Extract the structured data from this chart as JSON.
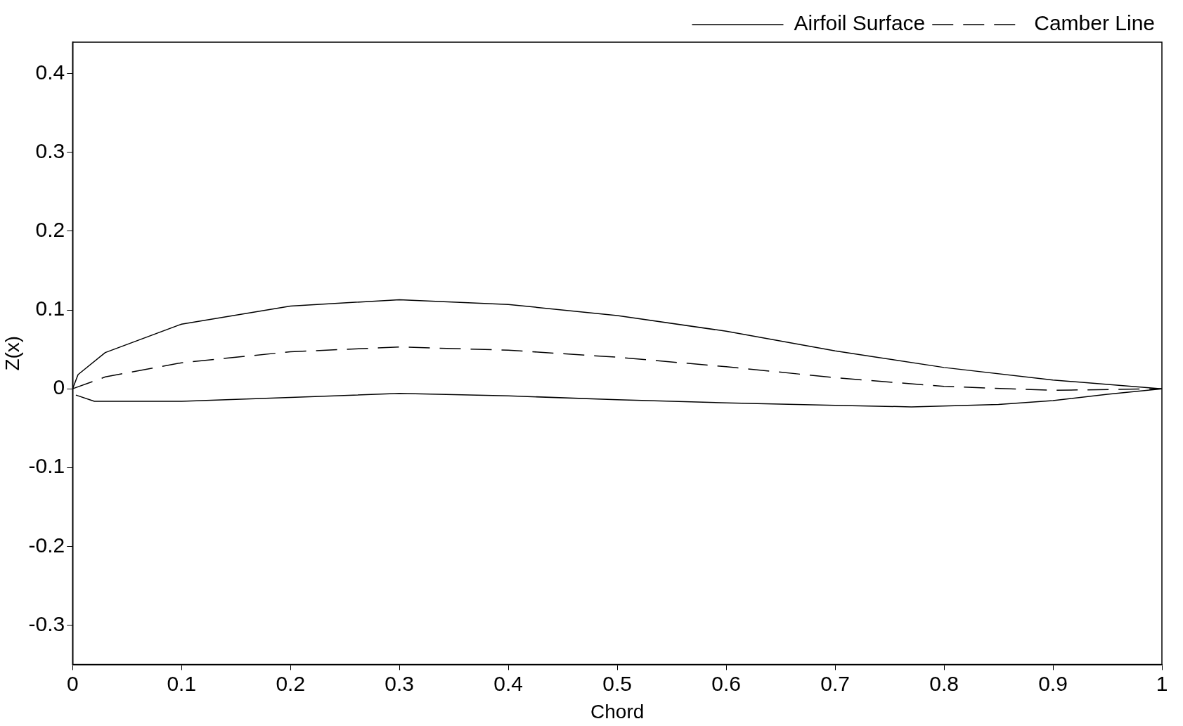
{
  "chart_data": {
    "type": "line",
    "xlabel": "Chord",
    "ylabel": "Z(x)",
    "xlim": [
      0,
      1
    ],
    "ylim": [
      -0.35,
      0.44
    ],
    "xticks": [
      0,
      0.1,
      0.2,
      0.3,
      0.4,
      0.5,
      0.6,
      0.7,
      0.8,
      0.9,
      1
    ],
    "yticks": [
      -0.3,
      -0.2,
      -0.1,
      0,
      0.1,
      0.2,
      0.3,
      0.4
    ],
    "grid": false,
    "legend": "top right",
    "marker": "none",
    "series": [
      {
        "name": "Airfoil Surface",
        "color": "#000000",
        "line_style": "solid",
        "x": [
          0,
          0.005,
          0.03,
          0.1,
          0.2,
          0.3,
          0.4,
          0.5,
          0.6,
          0.7,
          0.8,
          0.9,
          1
        ],
        "values": [
          0,
          0.018,
          0.046,
          0.082,
          0.105,
          0.113,
          0.107,
          0.093,
          0.073,
          0.048,
          0.027,
          0.011,
          0
        ]
      },
      {
        "color": "#000000",
        "line_style": "solid",
        "x": [
          0.003,
          0.02,
          0.1,
          0.2,
          0.3,
          0.4,
          0.5,
          0.6,
          0.7,
          0.77,
          0.85,
          0.9,
          0.95,
          1
        ],
        "values": [
          -0.008,
          -0.016,
          -0.016,
          -0.011,
          -0.006,
          -0.009,
          -0.014,
          -0.018,
          -0.021,
          -0.023,
          -0.02,
          -0.015,
          -0.007,
          0
        ]
      },
      {
        "name": "Camber Line",
        "color": "#000000",
        "line_style": "dashed",
        "x": [
          0,
          0.03,
          0.1,
          0.2,
          0.3,
          0.4,
          0.5,
          0.6,
          0.7,
          0.8,
          0.9,
          1
        ],
        "values": [
          0,
          0.015,
          0.033,
          0.047,
          0.053,
          0.049,
          0.04,
          0.028,
          0.014,
          0.003,
          -0.002,
          0
        ]
      }
    ]
  }
}
